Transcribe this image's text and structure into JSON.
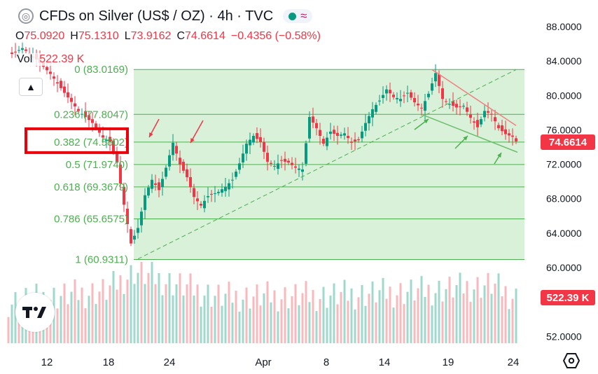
{
  "header": {
    "title": "CFDs on Silver (US$ / OZ) · 4h · TVC",
    "ohlc": {
      "o_label": "O",
      "o_value": "75.0920",
      "h_label": "H",
      "h_value": "75.1310",
      "l_label": "L",
      "l_value": "73.9162",
      "c_label": "C",
      "c_value": "74.6614",
      "change": "−0.4356 (−0.58%)"
    },
    "volume": {
      "label": "Vol",
      "value": "522.39 K"
    }
  },
  "colors": {
    "up": "#089981",
    "down": "#f23645",
    "fib_fill": "#d9f0d9",
    "fib_line": "#4caf50",
    "fib_label": "#4caf50",
    "highlight_box": "#e8000b",
    "arrow_red": "#f23645",
    "arrow_green": "#4caf50",
    "trend_red": "#f08080",
    "trend_green": "#6fbf6f"
  },
  "icons": {
    "collapse": "chevron-up-icon",
    "logo": "tradingview-logo-icon",
    "settings": "settings-hexagon-icon"
  },
  "chart_data": {
    "type": "candlestick",
    "title": "CFDs on Silver (US$ / OZ) · 4h · TVC",
    "y_axis": {
      "ticks": [
        "88.0000",
        "84.0000",
        "80.0000",
        "76.0000",
        "72.0000",
        "68.0000",
        "64.0000",
        "60.0000",
        "52.0000"
      ],
      "range": [
        51.2,
        89.6
      ]
    },
    "x_axis": {
      "ticks": [
        "12",
        "18",
        "24",
        "Apr",
        "8",
        "14",
        "19",
        "24"
      ]
    },
    "price_label": "74.6614",
    "volume_label": "522.39 K",
    "fib_levels": [
      {
        "ratio": "0",
        "label": "0 (83.0169)",
        "value": 83.0169
      },
      {
        "ratio": "0.236",
        "label": "0.236 (77.8047)",
        "value": 77.8047
      },
      {
        "ratio": "0.382",
        "label": "0.382 (74.5802)",
        "value": 74.5802
      },
      {
        "ratio": "0.5",
        "label": "0.5 (71.9740)",
        "value": 71.974
      },
      {
        "ratio": "0.618",
        "label": "0.618 (69.3679)",
        "value": 69.3679
      },
      {
        "ratio": "0.786",
        "label": "0.786 (65.6575)",
        "value": 65.6575
      },
      {
        "ratio": "1",
        "label": "1 (60.9311)",
        "value": 60.9311
      }
    ],
    "price_path": [
      [
        0,
        84.6
      ],
      [
        4,
        85.5
      ],
      [
        8,
        84.2
      ],
      [
        12,
        82.5
      ],
      [
        16,
        80.3
      ],
      [
        20,
        78.2
      ],
      [
        24,
        76.8
      ],
      [
        27,
        75.1
      ],
      [
        29,
        74.6
      ],
      [
        31,
        72.2
      ],
      [
        33,
        67.3
      ],
      [
        35,
        62.8
      ],
      [
        37,
        64.6
      ],
      [
        39,
        68.4
      ],
      [
        41,
        70.2
      ],
      [
        43,
        69.0
      ],
      [
        45,
        71.6
      ],
      [
        47,
        74.5
      ],
      [
        49,
        72.0
      ],
      [
        51,
        70.5
      ],
      [
        53,
        68.2
      ],
      [
        55,
        67.2
      ],
      [
        57,
        68.3
      ],
      [
        60,
        68.8
      ],
      [
        62,
        69.4
      ],
      [
        64,
        70.2
      ],
      [
        66,
        72.1
      ],
      [
        68,
        74.4
      ],
      [
        70,
        75.3
      ],
      [
        72,
        74.6
      ],
      [
        74,
        72.3
      ],
      [
        76,
        71.8
      ],
      [
        78,
        72.4
      ],
      [
        80,
        72.2
      ],
      [
        82,
        71.6
      ],
      [
        84,
        71.4
      ],
      [
        86,
        77.5
      ],
      [
        88,
        76.2
      ],
      [
        90,
        74.4
      ],
      [
        92,
        75.8
      ],
      [
        94,
        75.3
      ],
      [
        96,
        75.6
      ],
      [
        98,
        74.5
      ],
      [
        100,
        74.8
      ],
      [
        102,
        76.8
      ],
      [
        104,
        78.4
      ],
      [
        106,
        79.4
      ],
      [
        108,
        80.7
      ],
      [
        110,
        79.8
      ],
      [
        112,
        79.6
      ],
      [
        114,
        80.3
      ],
      [
        116,
        79.2
      ],
      [
        118,
        78.5
      ],
      [
        120,
        80.2
      ],
      [
        122,
        82.6
      ],
      [
        124,
        79.6
      ],
      [
        126,
        79.0
      ],
      [
        128,
        78.6
      ],
      [
        130,
        78.8
      ],
      [
        132,
        77.4
      ],
      [
        134,
        76.3
      ],
      [
        136,
        78.2
      ],
      [
        138,
        77.8
      ],
      [
        140,
        76.2
      ],
      [
        142,
        75.5
      ],
      [
        144,
        75.2
      ],
      [
        145,
        74.66
      ]
    ],
    "volume_path": [
      [
        0,
        56.0
      ],
      [
        28,
        57.3
      ],
      [
        36,
        59.5
      ],
      [
        60,
        56.6
      ],
      [
        90,
        56.7
      ],
      [
        120,
        57.3
      ],
      [
        138,
        58.0
      ],
      [
        145,
        56.5
      ]
    ],
    "annotations": {
      "red_arrows": 2,
      "green_arrows": 3,
      "dashed_trendline": [
        [
          37,
          61.0
        ],
        [
          145,
          83.0
        ]
      ],
      "red_trendline": [
        [
          121,
          83.0
        ],
        [
          145,
          76.5
        ]
      ],
      "green_trendline": [
        [
          118,
          77.8
        ],
        [
          145,
          73.4
        ]
      ]
    }
  }
}
